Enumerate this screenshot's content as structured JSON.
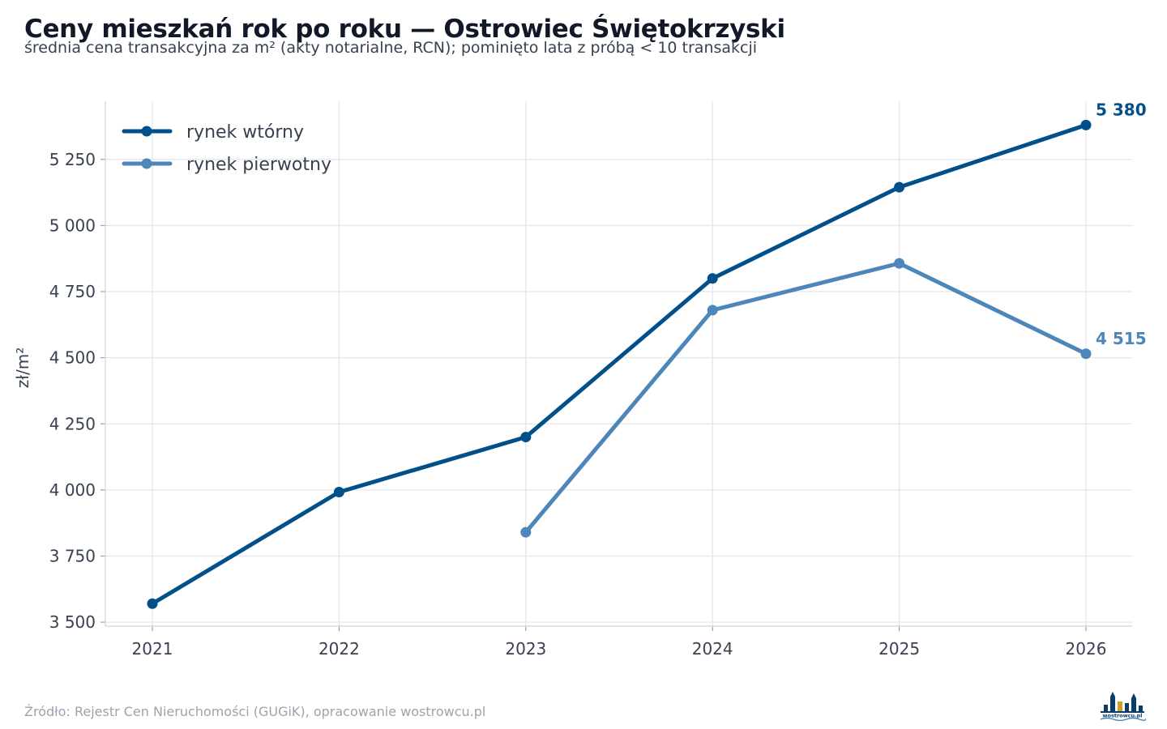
{
  "header": {
    "title": "Ceny mieszkań rok po roku — Ostrowiec Świętokrzyski",
    "subtitle": "średnia cena transakcyjna za m² (akty notarialne, RCN); pominięto lata z próbą < 10 transakcji"
  },
  "footer": {
    "source": "Źródło: Rejestr Cen Nieruchomości (GUGiK), opracowanie wostrowcu.pl",
    "logo_text": "wostrowcu.pl"
  },
  "chart_data": {
    "type": "line",
    "title": "Ceny mieszkań rok po roku — Ostrowiec Świętokrzyski",
    "ylabel": "zł/m²",
    "xlabel": "",
    "x": [
      2021,
      2022,
      2023,
      2024,
      2025,
      2026
    ],
    "x_tick_labels": [
      "2021",
      "2022",
      "2023",
      "2024",
      "2025",
      "2026"
    ],
    "ylim": [
      3485,
      5470
    ],
    "y_ticks": [
      3500,
      3750,
      4000,
      4250,
      4500,
      4750,
      5000,
      5250
    ],
    "y_tick_labels": [
      "3 500",
      "3 750",
      "4 000",
      "4 250",
      "4 500",
      "4 750",
      "5 000",
      "5 250"
    ],
    "grid": true,
    "legend_position": "top-left",
    "series": [
      {
        "name": "rynek wtórny",
        "color": "#02508a",
        "values": [
          3570,
          3992,
          4200,
          4800,
          5145,
          5380
        ],
        "end_label": "5 380"
      },
      {
        "name": "rynek pierwotny",
        "color": "#4d86b8",
        "values": [
          null,
          null,
          3840,
          4680,
          4857,
          4515
        ],
        "end_label": "4 515"
      }
    ]
  }
}
